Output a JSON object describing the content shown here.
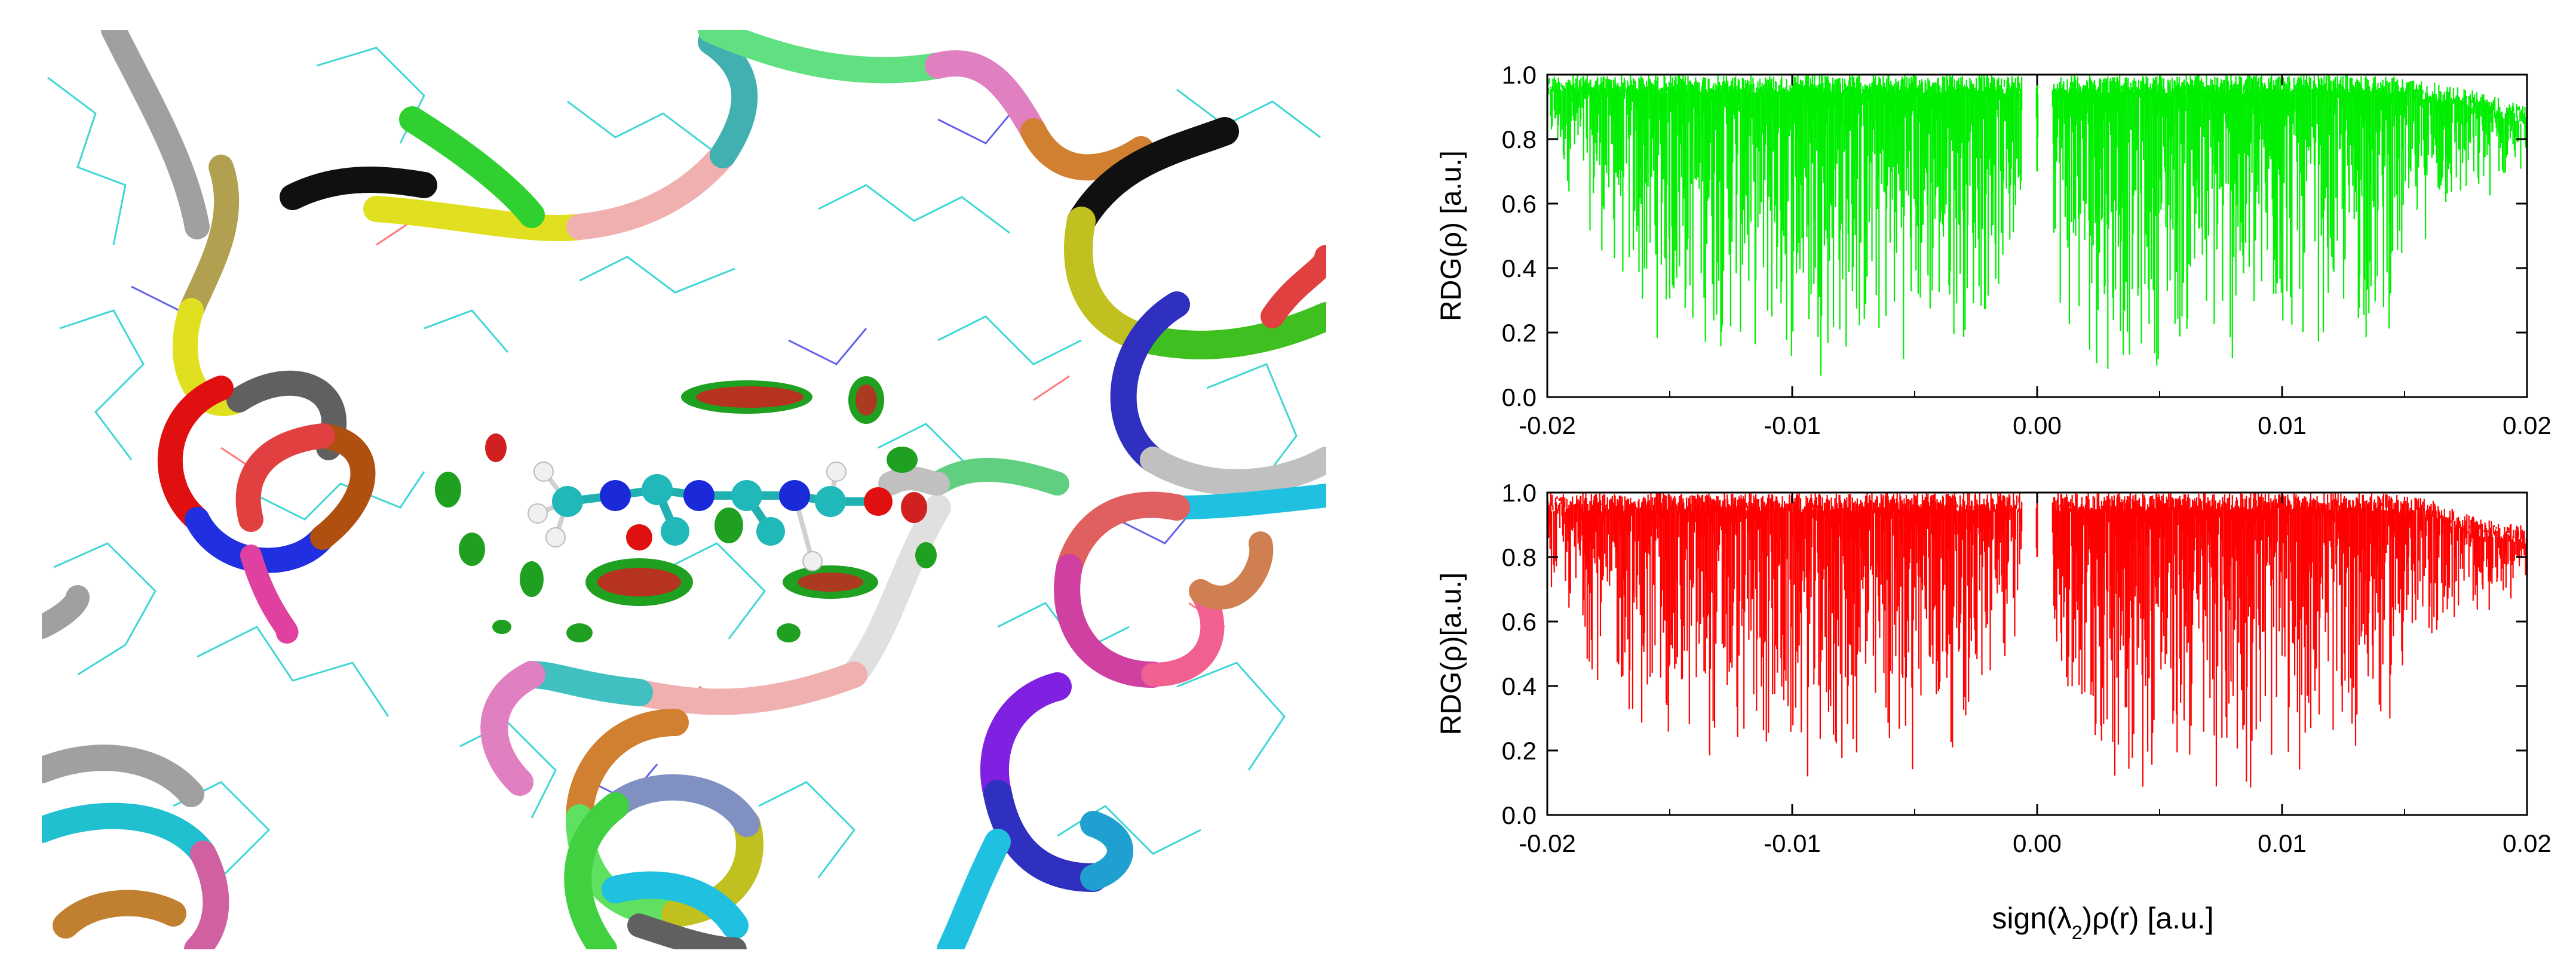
{
  "figure": {
    "left_panel": {
      "icon": "protein-ligand-ribbon-scene"
    }
  },
  "chart_data": [
    {
      "type": "line",
      "series_color": "#00ee00",
      "xlabel": "",
      "ylabel": "RDG(ρ) [a.u.]",
      "xlim": [
        -0.02,
        0.02
      ],
      "ylim": [
        0.0,
        1.0
      ],
      "x_ticks": [
        "-0.02",
        "-0.01",
        "0.00",
        "0.01",
        "0.02"
      ],
      "y_ticks": [
        "0.0",
        "0.2",
        "0.4",
        "0.6",
        "0.8",
        "1.0"
      ],
      "grid": false,
      "envelope": {
        "x": [
          -0.02,
          -0.018,
          -0.016,
          -0.014,
          -0.012,
          -0.01,
          -0.008,
          -0.006,
          -0.004,
          -0.003,
          -0.002,
          -0.001,
          -0.0005,
          0.0005,
          0.001,
          0.002,
          0.004,
          0.006,
          0.008,
          0.01,
          0.012,
          0.014,
          0.016,
          0.018,
          0.02
        ],
        "ymin": [
          0.75,
          0.45,
          0.15,
          0.12,
          0.1,
          0.05,
          0.05,
          0.08,
          0.12,
          0.15,
          0.2,
          0.3,
          0.7,
          0.7,
          0.15,
          0.05,
          0.05,
          0.1,
          0.02,
          0.1,
          0.15,
          0.1,
          0.5,
          0.55,
          0.72
        ],
        "ymax": [
          1.0,
          1.0,
          1.0,
          1.0,
          1.0,
          1.0,
          1.0,
          1.0,
          1.0,
          1.0,
          1.0,
          1.0,
          1.0,
          1.0,
          1.0,
          1.0,
          1.0,
          1.0,
          1.0,
          1.0,
          1.0,
          1.0,
          0.98,
          0.95,
          0.9
        ]
      }
    },
    {
      "type": "line",
      "series_color": "#ff0000",
      "xlabel": "sign(λ2)ρ(r) [a.u.]",
      "ylabel": "RDG(ρ)[a.u.]",
      "xlim": [
        -0.02,
        0.02
      ],
      "ylim": [
        0.0,
        1.0
      ],
      "x_ticks": [
        "-0.02",
        "-0.01",
        "0.00",
        "0.01",
        "0.02"
      ],
      "y_ticks": [
        "0.0",
        "0.2",
        "0.4",
        "0.6",
        "0.8",
        "1.0"
      ],
      "grid": false,
      "envelope": {
        "x": [
          -0.02,
          -0.018,
          -0.016,
          -0.014,
          -0.012,
          -0.01,
          -0.008,
          -0.006,
          -0.004,
          -0.003,
          -0.002,
          -0.001,
          -0.0005,
          0.0005,
          0.001,
          0.002,
          0.004,
          0.006,
          0.008,
          0.01,
          0.012,
          0.014,
          0.016,
          0.018,
          0.02
        ],
        "ymin": [
          0.7,
          0.4,
          0.2,
          0.15,
          0.12,
          0.08,
          0.05,
          0.1,
          0.15,
          0.2,
          0.3,
          0.45,
          0.8,
          0.8,
          0.2,
          0.08,
          0.05,
          0.05,
          0.03,
          0.08,
          0.15,
          0.2,
          0.5,
          0.6,
          0.7
        ],
        "ymax": [
          1.0,
          1.0,
          1.0,
          1.0,
          1.0,
          1.0,
          1.0,
          1.0,
          1.0,
          1.0,
          1.0,
          1.0,
          1.0,
          1.0,
          1.0,
          1.0,
          1.0,
          1.0,
          1.0,
          1.0,
          1.0,
          1.0,
          0.98,
          0.92,
          0.9
        ]
      }
    }
  ]
}
